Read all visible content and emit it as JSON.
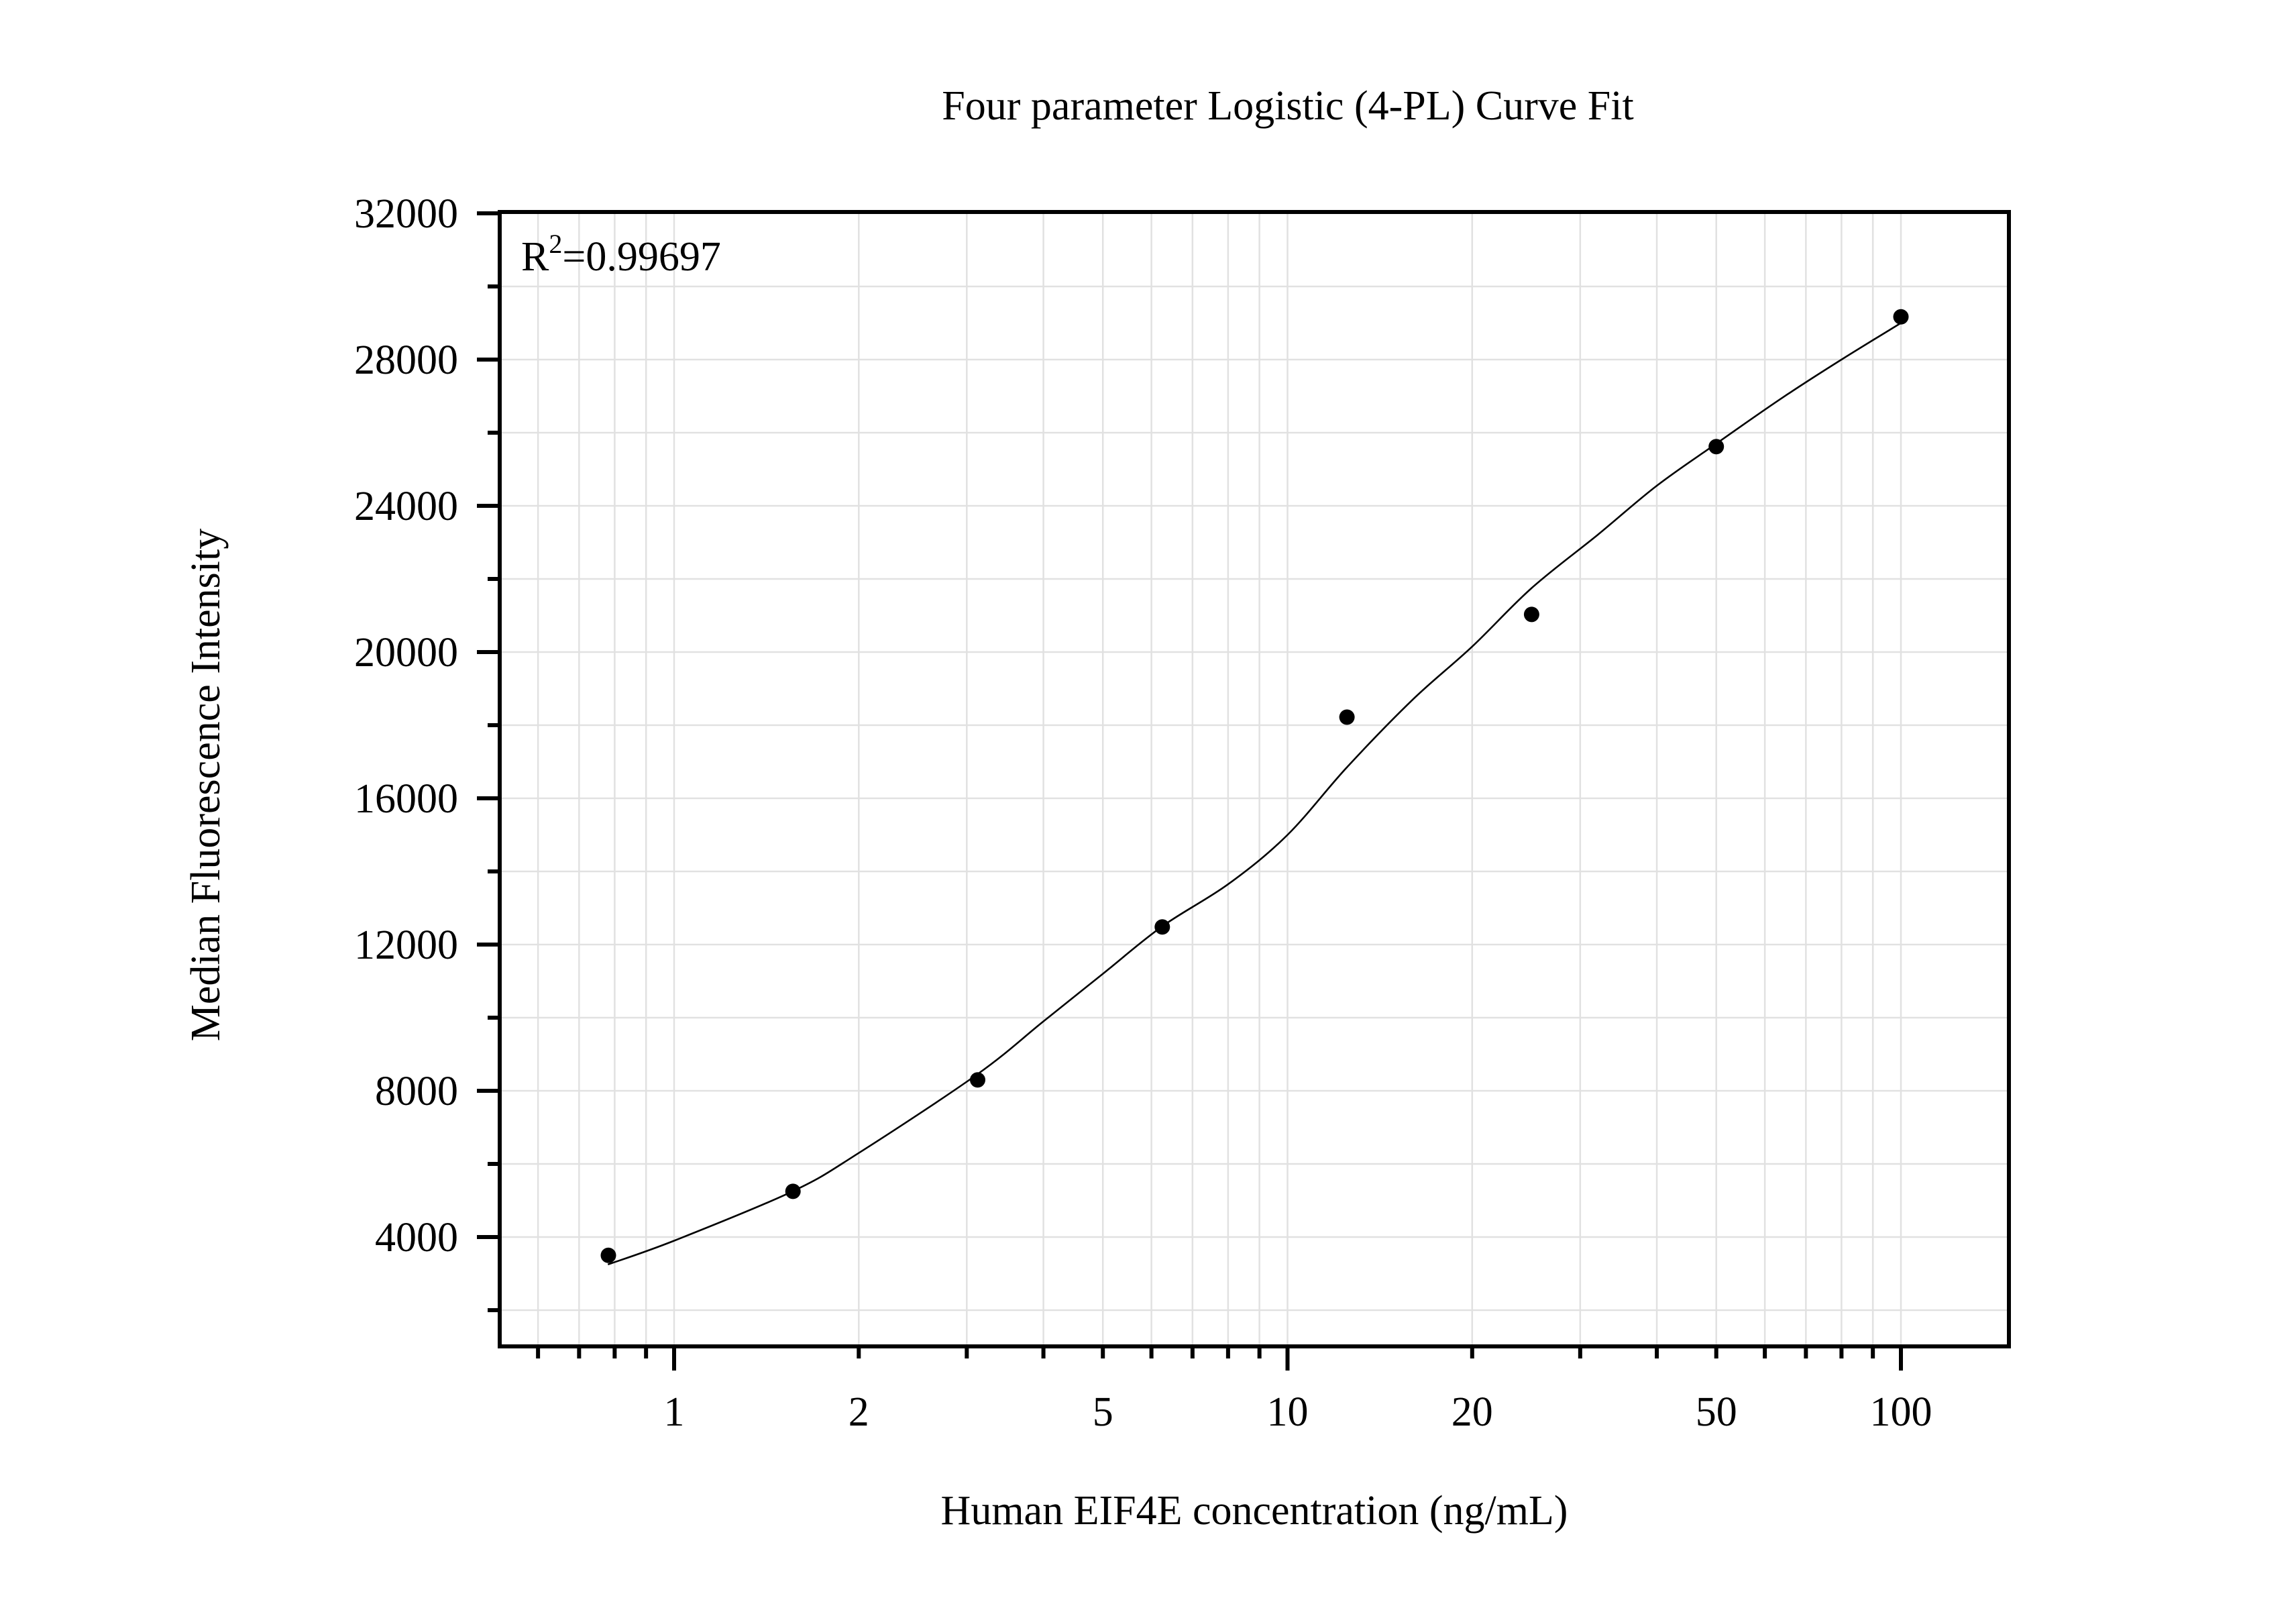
{
  "chart_data": {
    "type": "scatter",
    "title": "Four parameter Logistic (4-PL) Curve Fit",
    "xlabel": "Human EIF4E concentration (ng/mL)",
    "ylabel": "Median Fluorescence Intensity",
    "xscale": "log10",
    "xlim": [
      0.52,
      150
    ],
    "ylim": [
      1000,
      32000
    ],
    "grid": true,
    "legend": null,
    "annotations": [
      {
        "text": "R",
        "superscript": "2",
        "suffix": "=0.99697",
        "position": "top-left"
      }
    ],
    "x_ticks": [
      {
        "value": 1,
        "label": "1",
        "major": true
      },
      {
        "value": 2,
        "label": "2",
        "major": false
      },
      {
        "value": 5,
        "label": "5",
        "major": false
      },
      {
        "value": 10,
        "label": "10",
        "major": true
      },
      {
        "value": 20,
        "label": "20",
        "major": false
      },
      {
        "value": 50,
        "label": "50",
        "major": false
      },
      {
        "value": 100,
        "label": "100",
        "major": true
      }
    ],
    "x_minor_ticks": [
      0.6,
      0.7,
      0.8,
      0.9,
      3,
      4,
      6,
      7,
      8,
      9,
      30,
      40,
      60,
      70,
      80,
      90
    ],
    "y_ticks": [
      4000,
      8000,
      12000,
      16000,
      20000,
      24000,
      28000,
      32000
    ],
    "y_tick_labels": [
      "4000",
      "8000",
      "12000",
      "16000",
      "20000",
      "24000",
      "28000",
      "32000"
    ],
    "y_minor_ticks": [
      2000,
      6000,
      10000,
      14000,
      18000,
      22000,
      26000,
      30000
    ],
    "series": [
      {
        "name": "Standards",
        "type": "scatter",
        "marker": "filled-circle",
        "color": "#000000",
        "x": [
          0.78125,
          1.5625,
          3.125,
          6.25,
          12.5,
          25,
          50,
          100
        ],
        "y": [
          3500,
          5250,
          8300,
          12480,
          18220,
          21030,
          25620,
          29170
        ]
      },
      {
        "name": "4-PL fit",
        "type": "line",
        "color": "#000000",
        "x": [
          0.78,
          1.0,
          1.56,
          2.0,
          3.12,
          4.0,
          5.0,
          6.25,
          8.0,
          10.0,
          12.5,
          16.0,
          20.0,
          25.0,
          32.0,
          40.0,
          50.0,
          64.0,
          80.0,
          100.0
        ],
        "y": [
          3250,
          3900,
          5250,
          6300,
          8450,
          9900,
          11200,
          12500,
          13650,
          15000,
          16850,
          18700,
          20150,
          21750,
          23200,
          24550,
          25700,
          26950,
          28000,
          29000
        ]
      }
    ]
  }
}
